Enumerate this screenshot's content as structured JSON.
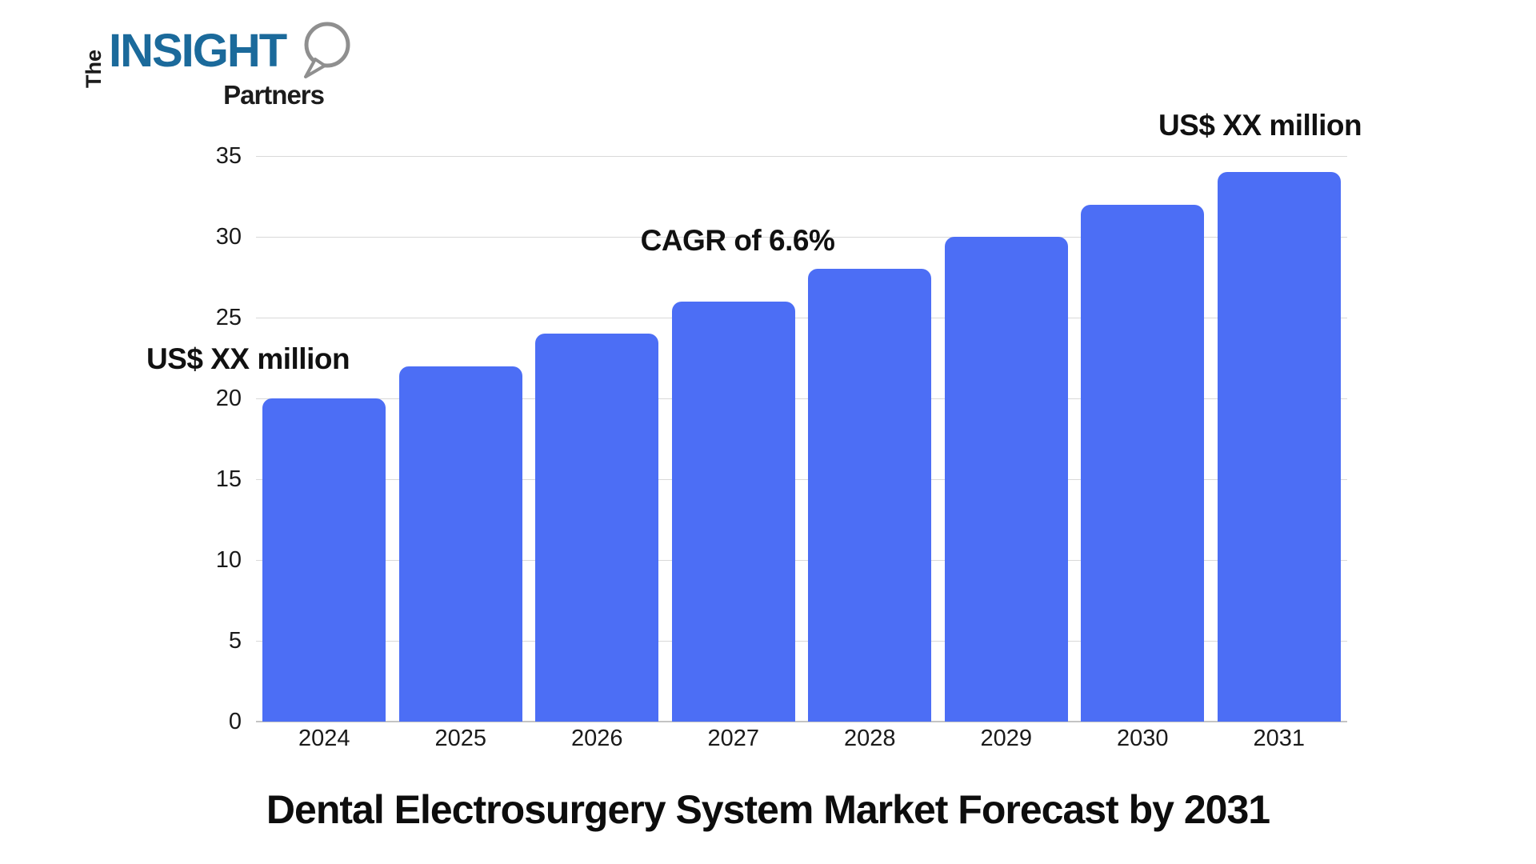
{
  "logo": {
    "the": "The",
    "insight": "INSIGHT",
    "partners": "Partners",
    "insight_color": "#1B6A9B",
    "text_color": "#1c1c1c"
  },
  "chart_data": {
    "type": "bar",
    "categories": [
      "2024",
      "2025",
      "2026",
      "2027",
      "2028",
      "2029",
      "2030",
      "2031"
    ],
    "values": [
      20,
      22,
      24,
      26,
      28,
      30,
      32,
      34
    ],
    "title": "Dental Electrosurgery System Market Forecast by 2031",
    "xlabel": "",
    "ylabel": "",
    "ylim": [
      0,
      35
    ],
    "ytick_step": 5,
    "yticks": [
      0,
      5,
      10,
      15,
      20,
      25,
      30,
      35
    ],
    "grid": true,
    "legend": false,
    "bar_color": "#4C6EF5",
    "annotations": {
      "left": "US$ XX million",
      "center": "CAGR of 6.6%",
      "right": "US$ XX million"
    }
  }
}
